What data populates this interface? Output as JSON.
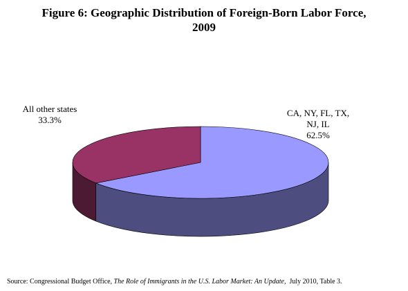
{
  "chart_data": {
    "type": "pie3d",
    "title": "Figure 6: Geographic Distribution of Foreign-Born Labor Force, 2009",
    "categories": [
      "CA, NY, FL, TX, NJ, IL",
      "All other states"
    ],
    "values": [
      62.5,
      33.3
    ],
    "value_labels": [
      "62.5%",
      "33.3%"
    ],
    "colors": [
      "#9999ff",
      "#993366"
    ]
  },
  "source": {
    "prefix": "Source: Congressional Budget Office, ",
    "title": "The Role of Immigrants in the U.S. Labor Market: An Update,",
    "suffix": "  July 2010, Table 3."
  }
}
